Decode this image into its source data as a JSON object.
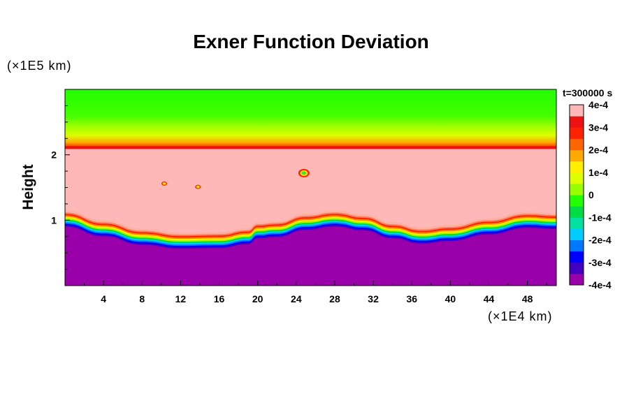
{
  "chart_data": {
    "type": "heatmap",
    "title": "Exner Function Deviation",
    "ylabel": "Height",
    "xunit": "(×1E4 km)",
    "yunit": "(×1E5 km)",
    "time_label": "t=300000 s",
    "xlim": [
      0,
      51
    ],
    "ylim": [
      0,
      3
    ],
    "xticks": [
      4,
      8,
      12,
      16,
      20,
      24,
      28,
      32,
      36,
      40,
      44,
      48
    ],
    "yticks": [
      1,
      2
    ],
    "colorbar": {
      "min": -0.0004,
      "max": 0.0004,
      "labels": [
        {
          "value": 0.0004,
          "text": "4e-4"
        },
        {
          "value": 0.0003,
          "text": "3e-4"
        },
        {
          "value": 0.0002,
          "text": "2e-4"
        },
        {
          "value": 0.0001,
          "text": "1e-4"
        },
        {
          "value": 0,
          "text": "0"
        },
        {
          "value": -0.0001,
          "text": "-1e-4"
        },
        {
          "value": -0.0002,
          "text": "-2e-4"
        },
        {
          "value": -0.0003,
          "text": "-3e-4"
        },
        {
          "value": -0.0004,
          "text": "-4e-4"
        }
      ],
      "colors": [
        "#9900aa",
        "#4400c0",
        "#0000ff",
        "#0077ff",
        "#00ccff",
        "#00e0a0",
        "#00dd44",
        "#22ff00",
        "#99ff00",
        "#ddff00",
        "#ffee00",
        "#ffaa00",
        "#ff6600",
        "#ff2200",
        "#ee1111",
        "#ffb8b8"
      ]
    },
    "upper_boundary_height": 2.1,
    "lower_interface": {
      "x": [
        0,
        4,
        8,
        12,
        16,
        19,
        20,
        22,
        25,
        28,
        31,
        34,
        37,
        40,
        44,
        48,
        51
      ],
      "y": [
        1.0,
        0.85,
        0.72,
        0.66,
        0.67,
        0.73,
        0.82,
        0.84,
        0.95,
        1.0,
        0.94,
        0.82,
        0.74,
        0.78,
        0.88,
        0.98,
        0.96
      ]
    },
    "spots": [
      {
        "x": 10.3,
        "y": 1.56
      },
      {
        "x": 13.8,
        "y": 1.51
      },
      {
        "x": 24.8,
        "y": 1.72
      }
    ]
  }
}
